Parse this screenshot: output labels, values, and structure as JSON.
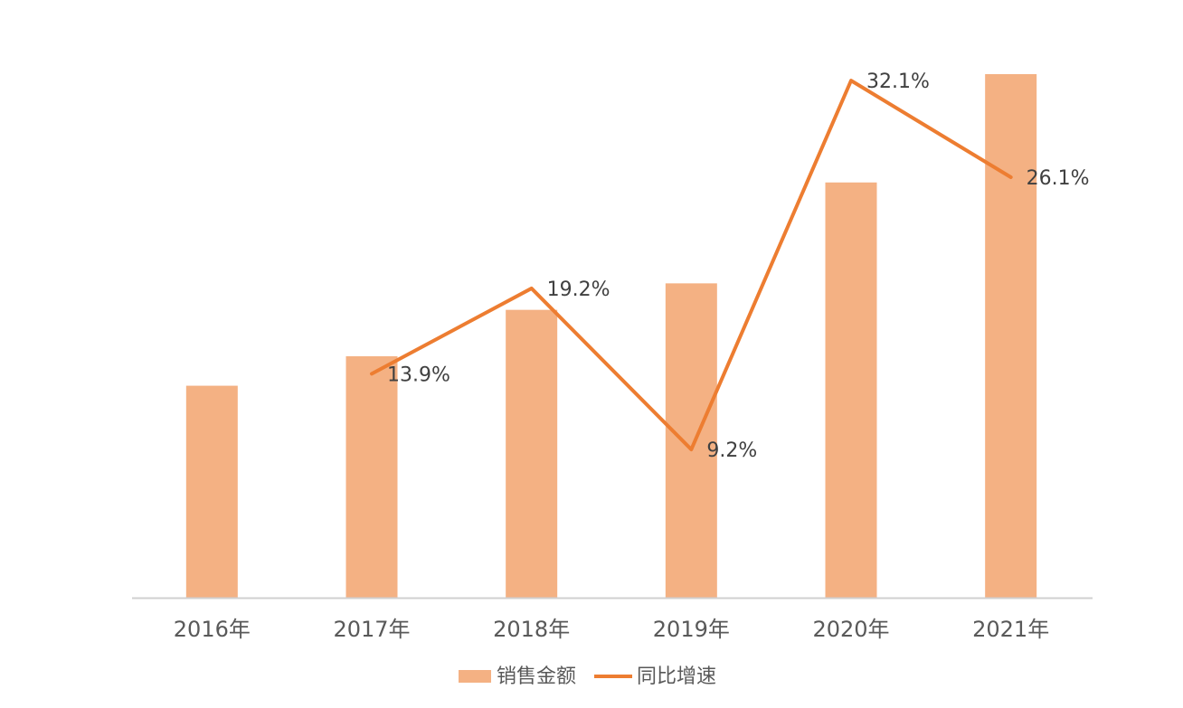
{
  "chart_data": {
    "type": "bar-line",
    "categories": [
      "2016年",
      "2017年",
      "2018年",
      "2019年",
      "2020年",
      "2021年"
    ],
    "series": [
      {
        "name": "销售金额",
        "type": "bar",
        "color": "#f4b183",
        "values": [
          100,
          113.9,
          135.8,
          148.3,
          195.9,
          247.0
        ]
      },
      {
        "name": "同比增速",
        "type": "line",
        "axis": "y2",
        "color": "#ed7d31",
        "values": [
          null,
          13.9,
          19.2,
          9.2,
          32.1,
          26.1
        ],
        "value_labels": [
          null,
          "13.9%",
          "19.2%",
          "9.2%",
          "32.1%",
          "26.1%"
        ]
      }
    ],
    "ylim": [
      0,
      247
    ],
    "y2lim": [
      0,
      32.5
    ],
    "grid": false,
    "legend": "bottom"
  }
}
